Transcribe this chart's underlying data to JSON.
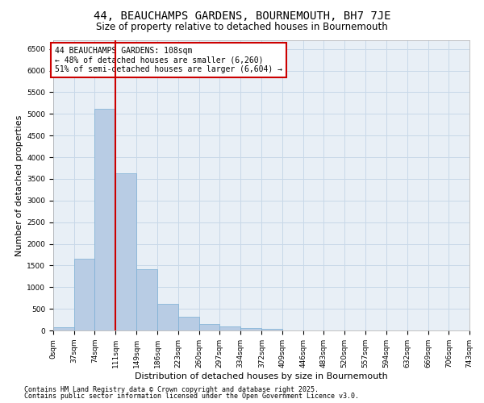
{
  "title": "44, BEAUCHAMPS GARDENS, BOURNEMOUTH, BH7 7JE",
  "subtitle": "Size of property relative to detached houses in Bournemouth",
  "xlabel": "Distribution of detached houses by size in Bournemouth",
  "ylabel": "Number of detached properties",
  "bar_values": [
    75,
    1650,
    5120,
    3620,
    1420,
    620,
    310,
    155,
    100,
    60,
    30,
    0,
    0,
    0,
    0,
    0,
    0,
    0,
    0,
    0
  ],
  "bar_edges": [
    0,
    37,
    74,
    111,
    149,
    186,
    223,
    260,
    297,
    334,
    372,
    409,
    446,
    483,
    520,
    557,
    594,
    632,
    669,
    706,
    743
  ],
  "tick_labels": [
    "0sqm",
    "37sqm",
    "74sqm",
    "111sqm",
    "149sqm",
    "186sqm",
    "223sqm",
    "260sqm",
    "297sqm",
    "334sqm",
    "372sqm",
    "409sqm",
    "446sqm",
    "483sqm",
    "520sqm",
    "557sqm",
    "594sqm",
    "632sqm",
    "669sqm",
    "706sqm",
    "743sqm"
  ],
  "vline_x": 111,
  "bar_color": "#b8cce4",
  "bar_edge_color": "#7bafd4",
  "vline_color": "#cc0000",
  "annotation_text": "44 BEAUCHAMPS GARDENS: 108sqm\n← 48% of detached houses are smaller (6,260)\n51% of semi-detached houses are larger (6,604) →",
  "annotation_box_color": "#cc0000",
  "footnote1": "Contains HM Land Registry data © Crown copyright and database right 2025.",
  "footnote2": "Contains public sector information licensed under the Open Government Licence v3.0.",
  "ylim": [
    0,
    6700
  ],
  "xlim": [
    0,
    743
  ],
  "yticks": [
    0,
    500,
    1000,
    1500,
    2000,
    2500,
    3000,
    3500,
    4000,
    4500,
    5000,
    5500,
    6000,
    6500
  ],
  "grid_color": "#c8d8e8",
  "bg_color": "#e8eff6",
  "title_fontsize": 10,
  "subtitle_fontsize": 8.5,
  "axis_label_fontsize": 8,
  "tick_fontsize": 6.5,
  "annotation_fontsize": 7,
  "footnote_fontsize": 6
}
